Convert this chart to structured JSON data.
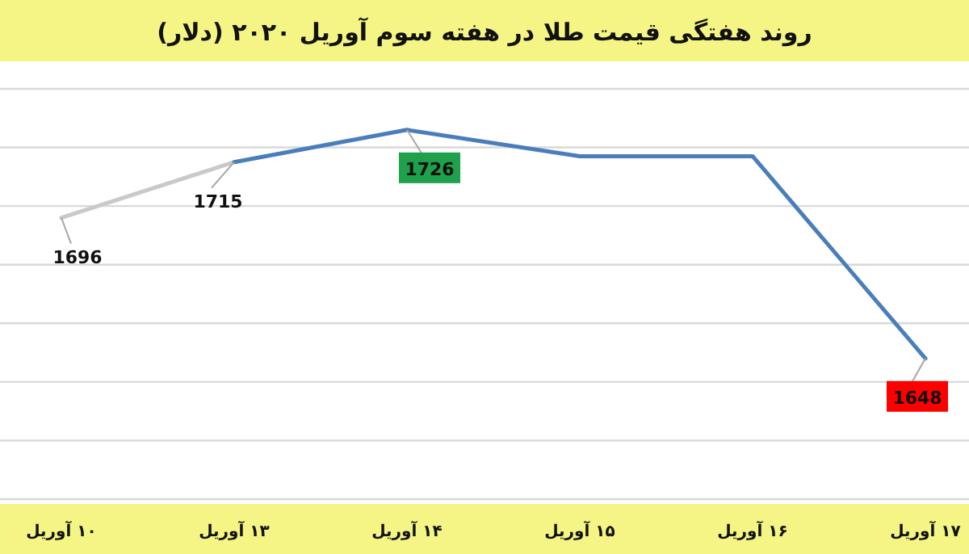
{
  "chart_data": {
    "type": "line",
    "title": "روند هفتگی قیمت طلا در هفته سوم آوریل ۲۰۲۰ (دلار)",
    "categories": [
      "۱۰ آوریل",
      "۱۳ آوریل",
      "۱۴ آوریل",
      "۱۵ آوریل",
      "۱۶ آوریل",
      "۱۷ آوریل"
    ],
    "series": [
      {
        "color": "#c9c9c9",
        "values": [
          1696,
          1715,
          null,
          null,
          null,
          null
        ],
        "value_labels": [
          "1696",
          null,
          null,
          null,
          null,
          null
        ]
      },
      {
        "color": "#4a7ebb",
        "values": [
          null,
          1715,
          1726,
          1717,
          1717,
          1648
        ],
        "value_labels": [
          null,
          "1715",
          "1726",
          null,
          null,
          "1648"
        ]
      }
    ],
    "ylim": [
      1600,
      1740
    ],
    "yticks": [
      {
        "value": 1600,
        "label": null
      },
      {
        "value": 1620,
        "label": null
      },
      {
        "value": 1640,
        "label": null
      },
      {
        "value": 1660,
        "label": null
      },
      {
        "value": 1680,
        "label": null
      },
      {
        "value": 1700,
        "label": null
      },
      {
        "value": 1720,
        "label": null
      },
      {
        "value": 1740,
        "label": null
      }
    ],
    "grid": "y",
    "marker": "none",
    "line_style": "solid"
  }
}
